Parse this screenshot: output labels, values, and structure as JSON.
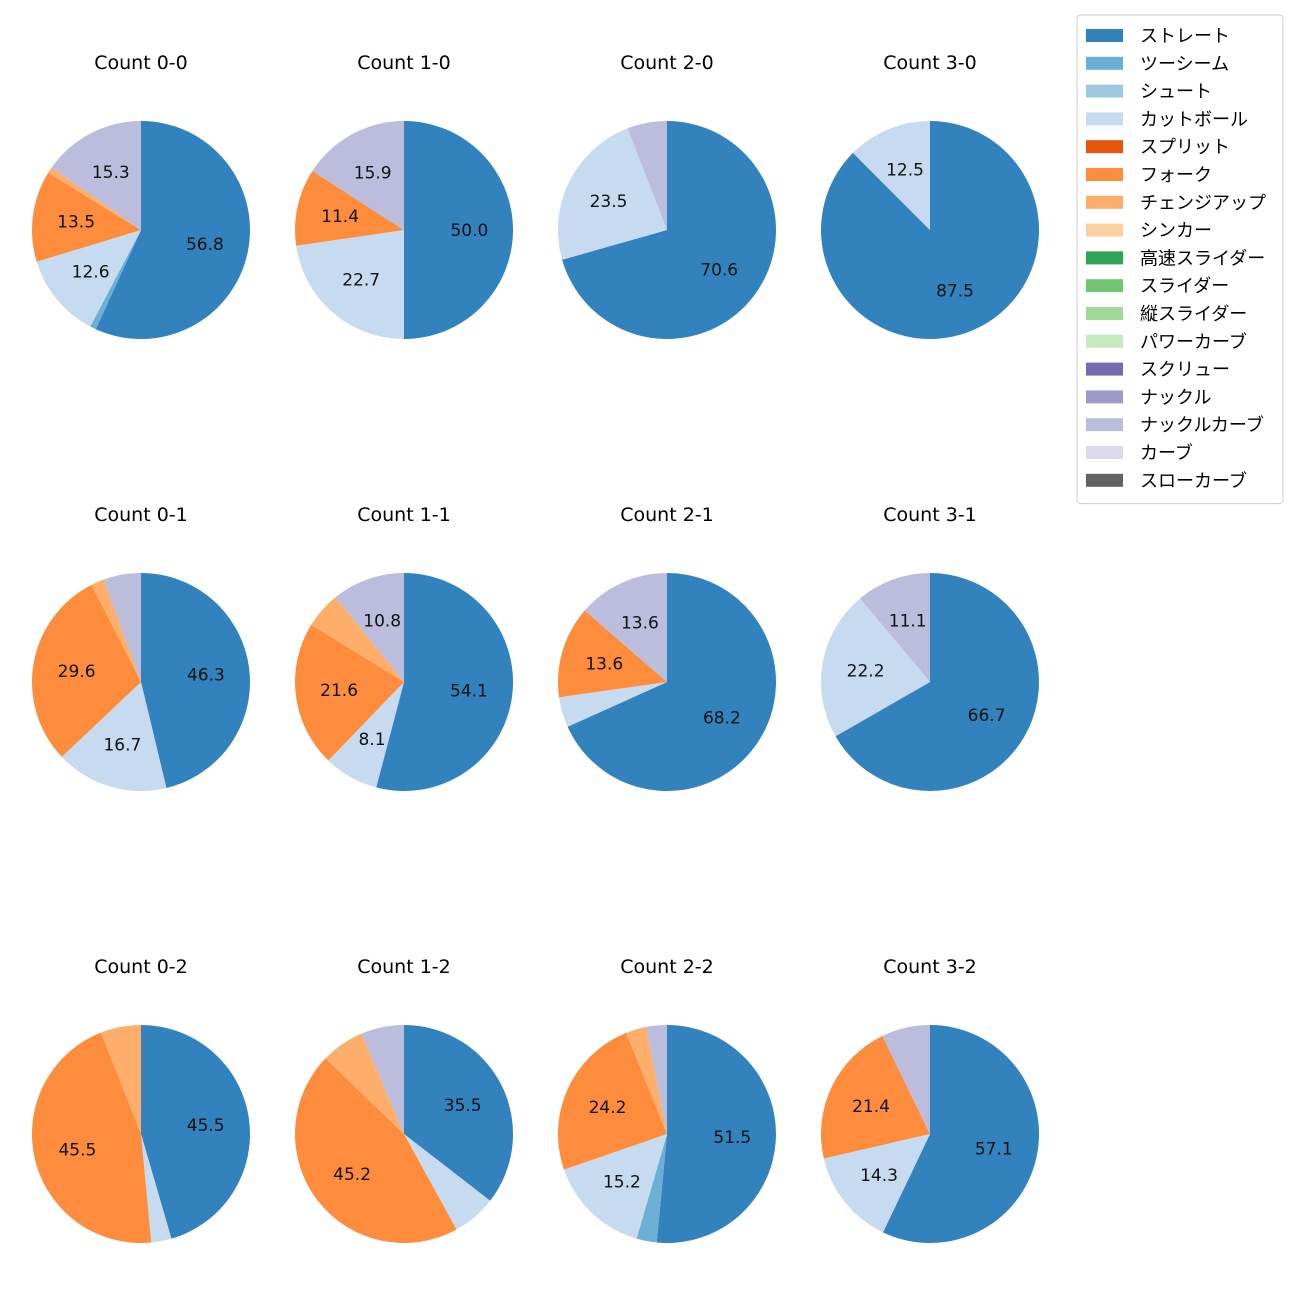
{
  "legend": {
    "entries": [
      {
        "label": "ストレート",
        "color": "#3182bd"
      },
      {
        "label": "ツーシーム",
        "color": "#6baed6"
      },
      {
        "label": "シュート",
        "color": "#9ecae1"
      },
      {
        "label": "カットボール",
        "color": "#c6dbef"
      },
      {
        "label": "スプリット",
        "color": "#e6550d"
      },
      {
        "label": "フォーク",
        "color": "#fd8d3c"
      },
      {
        "label": "チェンジアップ",
        "color": "#fdae6b"
      },
      {
        "label": "シンカー",
        "color": "#fdd0a2"
      },
      {
        "label": "高速スライダー",
        "color": "#31a354"
      },
      {
        "label": "スライダー",
        "color": "#74c476"
      },
      {
        "label": "縦スライダー",
        "color": "#a1d99b"
      },
      {
        "label": "パワーカーブ",
        "color": "#c7e9c0"
      },
      {
        "label": "スクリュー",
        "color": "#756bb1"
      },
      {
        "label": "ナックル",
        "color": "#9e9ac8"
      },
      {
        "label": "ナックルカーブ",
        "color": "#bcbddc"
      },
      {
        "label": "カーブ",
        "color": "#dadaeb"
      },
      {
        "label": "スローカーブ",
        "color": "#636363"
      }
    ]
  },
  "chart_data": [
    {
      "type": "pie",
      "title": "Count 0-0",
      "slices": [
        {
          "pitch": "ストレート",
          "value": 56.8,
          "label": "56.8"
        },
        {
          "pitch": "ツーシーム",
          "value": 0.9,
          "label": ""
        },
        {
          "pitch": "カットボール",
          "value": 12.6,
          "label": "12.6"
        },
        {
          "pitch": "フォーク",
          "value": 13.5,
          "label": "13.5"
        },
        {
          "pitch": "チェンジアップ",
          "value": 0.9,
          "label": ""
        },
        {
          "pitch": "ナックルカーブ",
          "value": 15.3,
          "label": "15.3"
        }
      ]
    },
    {
      "type": "pie",
      "title": "Count 1-0",
      "slices": [
        {
          "pitch": "ストレート",
          "value": 50.0,
          "label": "50.0"
        },
        {
          "pitch": "カットボール",
          "value": 22.7,
          "label": "22.7"
        },
        {
          "pitch": "フォーク",
          "value": 11.4,
          "label": "11.4"
        },
        {
          "pitch": "ナックルカーブ",
          "value": 15.9,
          "label": "15.9"
        }
      ]
    },
    {
      "type": "pie",
      "title": "Count 2-0",
      "slices": [
        {
          "pitch": "ストレート",
          "value": 70.6,
          "label": "70.6"
        },
        {
          "pitch": "カットボール",
          "value": 23.5,
          "label": "23.5"
        },
        {
          "pitch": "ナックルカーブ",
          "value": 5.9,
          "label": ""
        }
      ]
    },
    {
      "type": "pie",
      "title": "Count 3-0",
      "slices": [
        {
          "pitch": "ストレート",
          "value": 87.5,
          "label": "87.5"
        },
        {
          "pitch": "カットボール",
          "value": 12.5,
          "label": "12.5"
        }
      ]
    },
    {
      "type": "pie",
      "title": "Count 0-1",
      "slices": [
        {
          "pitch": "ストレート",
          "value": 46.3,
          "label": "46.3"
        },
        {
          "pitch": "カットボール",
          "value": 16.7,
          "label": "16.7"
        },
        {
          "pitch": "フォーク",
          "value": 29.6,
          "label": "29.6"
        },
        {
          "pitch": "チェンジアップ",
          "value": 1.9,
          "label": ""
        },
        {
          "pitch": "ナックルカーブ",
          "value": 5.6,
          "label": ""
        }
      ]
    },
    {
      "type": "pie",
      "title": "Count 1-1",
      "slices": [
        {
          "pitch": "ストレート",
          "value": 54.1,
          "label": "54.1"
        },
        {
          "pitch": "カットボール",
          "value": 8.1,
          "label": "8.1"
        },
        {
          "pitch": "フォーク",
          "value": 21.6,
          "label": "21.6"
        },
        {
          "pitch": "チェンジアップ",
          "value": 5.4,
          "label": ""
        },
        {
          "pitch": "ナックルカーブ",
          "value": 10.8,
          "label": "10.8"
        }
      ]
    },
    {
      "type": "pie",
      "title": "Count 2-1",
      "slices": [
        {
          "pitch": "ストレート",
          "value": 68.2,
          "label": "68.2"
        },
        {
          "pitch": "カットボール",
          "value": 4.5,
          "label": ""
        },
        {
          "pitch": "フォーク",
          "value": 13.6,
          "label": "13.6"
        },
        {
          "pitch": "ナックルカーブ",
          "value": 13.6,
          "label": "13.6"
        }
      ]
    },
    {
      "type": "pie",
      "title": "Count 3-1",
      "slices": [
        {
          "pitch": "ストレート",
          "value": 66.7,
          "label": "66.7"
        },
        {
          "pitch": "カットボール",
          "value": 22.2,
          "label": "22.2"
        },
        {
          "pitch": "ナックルカーブ",
          "value": 11.1,
          "label": "11.1"
        }
      ]
    },
    {
      "type": "pie",
      "title": "Count 0-2",
      "slices": [
        {
          "pitch": "ストレート",
          "value": 45.5,
          "label": "45.5"
        },
        {
          "pitch": "カットボール",
          "value": 3.0,
          "label": ""
        },
        {
          "pitch": "フォーク",
          "value": 45.5,
          "label": "45.5"
        },
        {
          "pitch": "チェンジアップ",
          "value": 6.0,
          "label": ""
        }
      ]
    },
    {
      "type": "pie",
      "title": "Count 1-2",
      "slices": [
        {
          "pitch": "ストレート",
          "value": 35.5,
          "label": "35.5"
        },
        {
          "pitch": "カットボール",
          "value": 6.5,
          "label": ""
        },
        {
          "pitch": "フォーク",
          "value": 45.2,
          "label": "45.2"
        },
        {
          "pitch": "チェンジアップ",
          "value": 6.4,
          "label": ""
        },
        {
          "pitch": "ナックルカーブ",
          "value": 6.4,
          "label": ""
        }
      ]
    },
    {
      "type": "pie",
      "title": "Count 2-2",
      "slices": [
        {
          "pitch": "ストレート",
          "value": 51.5,
          "label": "51.5"
        },
        {
          "pitch": "ツーシーム",
          "value": 3.0,
          "label": ""
        },
        {
          "pitch": "カットボール",
          "value": 15.2,
          "label": "15.2"
        },
        {
          "pitch": "フォーク",
          "value": 24.2,
          "label": "24.2"
        },
        {
          "pitch": "チェンジアップ",
          "value": 3.0,
          "label": ""
        },
        {
          "pitch": "ナックルカーブ",
          "value": 3.1,
          "label": ""
        }
      ]
    },
    {
      "type": "pie",
      "title": "Count 3-2",
      "slices": [
        {
          "pitch": "ストレート",
          "value": 57.1,
          "label": "57.1"
        },
        {
          "pitch": "カットボール",
          "value": 14.3,
          "label": "14.3"
        },
        {
          "pitch": "フォーク",
          "value": 21.4,
          "label": "21.4"
        },
        {
          "pitch": "ナックルカーブ",
          "value": 7.2,
          "label": ""
        }
      ]
    }
  ]
}
